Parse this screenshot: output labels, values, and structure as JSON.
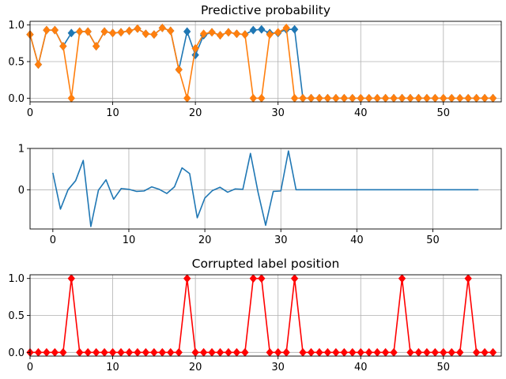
{
  "colors": {
    "blue": "#1f77b4",
    "orange": "#ff7f0e",
    "red": "#ff0000",
    "grid": "#b0b0b0"
  },
  "chart_data": [
    {
      "type": "line",
      "title": "Predictive probability",
      "xlabel": "",
      "ylabel": "",
      "xlim": [
        0,
        57
      ],
      "ylim": [
        -0.05,
        1.05
      ],
      "grid": true,
      "xticks": [
        0,
        10,
        20,
        30,
        40,
        50
      ],
      "yticks": [
        0.0,
        0.5,
        1.0
      ],
      "ytick_labels": [
        "0.0",
        "0.5",
        "1.0"
      ],
      "marker": "diamond",
      "x": [
        0,
        1,
        2,
        3,
        4,
        5,
        6,
        7,
        8,
        9,
        10,
        11,
        12,
        13,
        14,
        15,
        16,
        17,
        18,
        19,
        20,
        21,
        22,
        23,
        24,
        25,
        26,
        27,
        28,
        29,
        30,
        31,
        32,
        33,
        34,
        35,
        36,
        37,
        38,
        39,
        40,
        41,
        42,
        43,
        44,
        45,
        46,
        47,
        48,
        49,
        50,
        51,
        52,
        53,
        54,
        55,
        56
      ],
      "series": [
        {
          "color": "#1f77b4",
          "values": [
            0.87,
            0.46,
            0.93,
            0.93,
            0.71,
            0.89,
            0.91,
            0.91,
            0.71,
            0.91,
            0.89,
            0.9,
            0.92,
            0.95,
            0.88,
            0.87,
            0.96,
            0.92,
            0.39,
            0.91,
            0.59,
            0.86,
            0.9,
            0.86,
            0.9,
            0.88,
            0.87,
            0.93,
            0.94,
            0.89,
            0.89,
            0.94,
            0.94,
            0,
            0,
            0,
            0,
            0,
            0,
            0,
            0,
            0,
            0,
            0,
            0,
            0,
            0,
            0,
            0,
            0,
            0,
            0,
            0,
            0,
            0,
            0,
            0
          ]
        },
        {
          "color": "#ff7f0e",
          "values": [
            0.87,
            0.46,
            0.93,
            0.93,
            0.71,
            0.0,
            0.91,
            0.91,
            0.71,
            0.91,
            0.89,
            0.9,
            0.92,
            0.95,
            0.88,
            0.87,
            0.96,
            0.92,
            0.39,
            0.0,
            0.68,
            0.88,
            0.9,
            0.86,
            0.9,
            0.88,
            0.87,
            0.0,
            0.0,
            0.87,
            0.9,
            0.96,
            0.0,
            0,
            0,
            0,
            0,
            0,
            0,
            0,
            0,
            0,
            0,
            0,
            0,
            0,
            0,
            0,
            0,
            0,
            0,
            0,
            0,
            0,
            0,
            0,
            0
          ]
        }
      ]
    },
    {
      "type": "line",
      "title": "",
      "xlabel": "",
      "ylabel": "",
      "xlim": [
        -3,
        59
      ],
      "ylim": [
        -0.95,
        1.0
      ],
      "grid": true,
      "xticks": [
        0,
        10,
        20,
        30,
        40,
        50
      ],
      "yticks": [
        0,
        1
      ],
      "ytick_labels": [
        "0",
        "1"
      ],
      "x": [
        0,
        1,
        2,
        3,
        4,
        5,
        6,
        7,
        8,
        9,
        10,
        11,
        12,
        13,
        14,
        15,
        16,
        17,
        18,
        19,
        20,
        21,
        22,
        23,
        24,
        25,
        26,
        27,
        28,
        29,
        30,
        31,
        32,
        33,
        34,
        35,
        36,
        37,
        38,
        39,
        40,
        41,
        42,
        43,
        44,
        45,
        46,
        47,
        48,
        49,
        50,
        51,
        52,
        53,
        54,
        55,
        56
      ],
      "series": [
        {
          "color": "#1f77b4",
          "values": [
            0.41,
            -0.47,
            0.0,
            0.22,
            0.71,
            -0.89,
            -0.01,
            0.24,
            -0.23,
            0.03,
            0.01,
            -0.04,
            -0.03,
            0.07,
            0.01,
            -0.09,
            0.07,
            0.53,
            0.39,
            -0.68,
            -0.2,
            -0.02,
            0.06,
            -0.06,
            0.02,
            0.01,
            0.88,
            -0.06,
            -0.86,
            -0.04,
            -0.03,
            0.94,
            0.0,
            0,
            0,
            0,
            0,
            0,
            0,
            0,
            0,
            0,
            0,
            0,
            0,
            0,
            0,
            0,
            0,
            0,
            0,
            0,
            0,
            0,
            0,
            0,
            0
          ]
        }
      ]
    },
    {
      "type": "line",
      "title": "Corrupted label position",
      "xlabel": "",
      "ylabel": "",
      "xlim": [
        0,
        57
      ],
      "ylim": [
        -0.05,
        1.05
      ],
      "grid": true,
      "xticks": [
        0,
        10,
        20,
        30,
        40,
        50
      ],
      "yticks": [
        0.0,
        0.5,
        1.0
      ],
      "ytick_labels": [
        "0.0",
        "0.5",
        "1.0"
      ],
      "marker": "diamond",
      "x": [
        0,
        1,
        2,
        3,
        4,
        5,
        6,
        7,
        8,
        9,
        10,
        11,
        12,
        13,
        14,
        15,
        16,
        17,
        18,
        19,
        20,
        21,
        22,
        23,
        24,
        25,
        26,
        27,
        28,
        29,
        30,
        31,
        32,
        33,
        34,
        35,
        36,
        37,
        38,
        39,
        40,
        41,
        42,
        43,
        44,
        45,
        46,
        47,
        48,
        49,
        50,
        51,
        52,
        53,
        54,
        55,
        56
      ],
      "series": [
        {
          "color": "#ff0000",
          "values": [
            0,
            0,
            0,
            0,
            0,
            1,
            0,
            0,
            0,
            0,
            0,
            0,
            0,
            0,
            0,
            0,
            0,
            0,
            0,
            1,
            0,
            0,
            0,
            0,
            0,
            0,
            0,
            1,
            1,
            0,
            0,
            0,
            1,
            0,
            0,
            0,
            0,
            0,
            0,
            0,
            0,
            0,
            0,
            0,
            0,
            1,
            0,
            0,
            0,
            0,
            0,
            0,
            0,
            1,
            0,
            0,
            0
          ]
        }
      ]
    }
  ]
}
